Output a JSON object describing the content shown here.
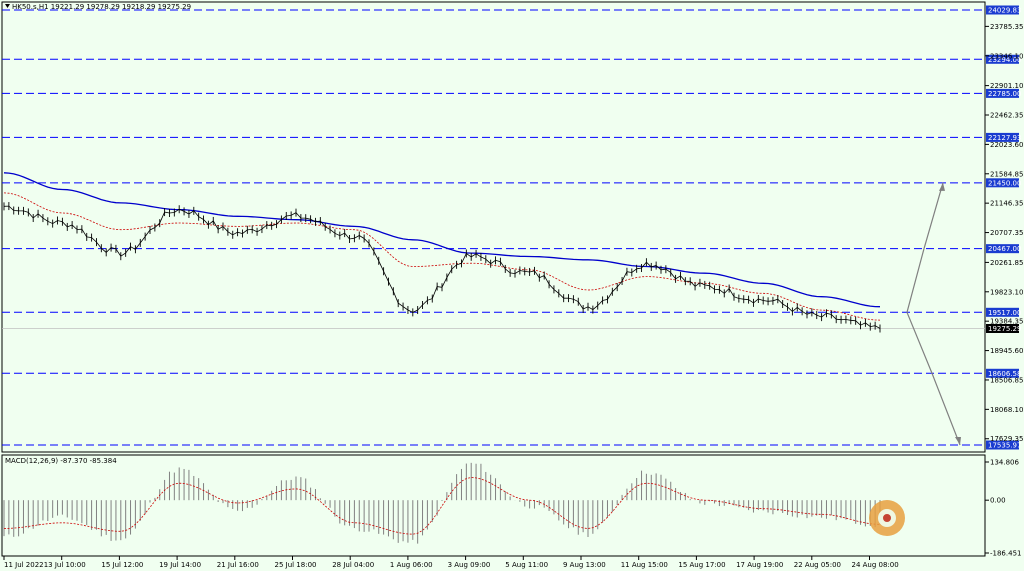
{
  "header": {
    "symbol_info": "HK50.s,H1  19221.29 19278.29 19218.29 19275.29",
    "macd_info": "MACD(12,26,9) -87.370 -85.384"
  },
  "colors": {
    "background": "#f0fff0",
    "price_line": "#000000",
    "ma_long": "#0000cc",
    "ma_short": "#cc0000",
    "level_line": "#0000ff",
    "level_box": "#1a3cd0",
    "current_box": "#000000",
    "arrow": "#808080",
    "macd_hist": "#808080",
    "macd_signal": "#cc0000"
  },
  "price_axis": {
    "ticks": [
      "23785.35",
      "23346.10",
      "22901.10",
      "22462.35",
      "22023.60",
      "21584.85",
      "21146.35",
      "20707.35",
      "20261.85",
      "19823.10",
      "19384.35",
      "18945.60",
      "18506.85",
      "18068.10",
      "17629.35"
    ],
    "min": 17535.97,
    "max": 24029.83
  },
  "levels": [
    "24029.83",
    "23294.00",
    "22785.00",
    "22127.93",
    "21450.00",
    "20467.00",
    "19517.00",
    "18606.58",
    "17535.97"
  ],
  "current_price": "19275.29",
  "macd_axis": {
    "ticks": [
      "134.806",
      "0.00",
      "-186.451"
    ],
    "min": -186.451,
    "max": 134.806
  },
  "time_axis": {
    "labels": [
      "11 Jul 2022",
      "13 Jul 10:00",
      "15 Jul 12:00",
      "19 Jul 14:00",
      "21 Jul 16:00",
      "25 Jul 18:00",
      "28 Jul 04:00",
      "1 Aug 06:00",
      "3 Aug 09:00",
      "5 Aug 11:00",
      "9 Aug 13:00",
      "11 Aug 15:00",
      "15 Aug 17:00",
      "17 Aug 19:00",
      "22 Aug 05:00",
      "24 Aug 08:00"
    ]
  },
  "chart_data": {
    "type": "line",
    "title": "HK50.s,H1",
    "x": [
      "11 Jul 2022",
      "13 Jul 10:00",
      "15 Jul 12:00",
      "19 Jul 14:00",
      "21 Jul 16:00",
      "25 Jul 18:00",
      "28 Jul 04:00",
      "1 Aug 06:00",
      "3 Aug 09:00",
      "5 Aug 11:00",
      "9 Aug 13:00",
      "11 Aug 15:00",
      "15 Aug 17:00",
      "17 Aug 19:00",
      "22 Aug 05:00",
      "24 Aug 08:00"
    ],
    "series": [
      {
        "values": [
          21100,
          20850,
          20400,
          21050,
          20700,
          20950,
          20650,
          19550,
          20350,
          20100,
          19600,
          20250,
          19900,
          19700,
          19450,
          19275
        ]
      },
      {
        "values": [
          21600,
          21350,
          21150,
          21050,
          20950,
          20900,
          20800,
          20600,
          20400,
          20350,
          20300,
          20200,
          20100,
          19950,
          19750,
          19600
        ]
      },
      {
        "values": [
          21300,
          21000,
          20750,
          20850,
          20800,
          20850,
          20750,
          20200,
          20250,
          20150,
          19850,
          20050,
          19950,
          19800,
          19550,
          19400
        ]
      }
    ],
    "macd": [
      -130,
      -60,
      -140,
      110,
      -40,
      80,
      -100,
      -150,
      130,
      -20,
      -120,
      100,
      -10,
      -40,
      -60,
      -87.37
    ],
    "macd_signal": [
      -100,
      -80,
      -110,
      60,
      -10,
      40,
      -80,
      -120,
      80,
      0,
      -100,
      60,
      0,
      -30,
      -50,
      -85.384
    ],
    "projection_up": {
      "from": 19517,
      "mid": 20467,
      "to": 21450
    },
    "projection_down": {
      "from": 19517,
      "mid": 18606.58,
      "to": 17535.97
    },
    "ylim": [
      17535.97,
      24029.83
    ]
  }
}
